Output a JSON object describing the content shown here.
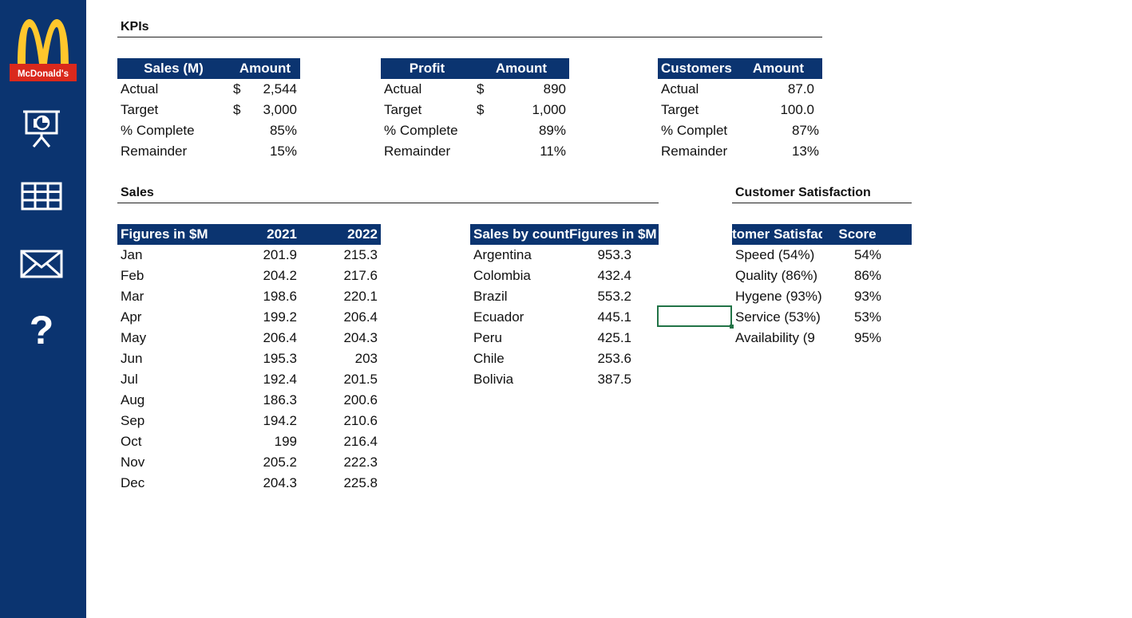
{
  "brand": {
    "logo_text": "McDonald's",
    "logo_arch_color": "#ffc72c",
    "logo_red": "#da291c"
  },
  "colors": {
    "sidebar": "#0b3470",
    "header": "#0b3470",
    "selection": "#217346"
  },
  "nav": [
    {
      "icon": "presentation-icon"
    },
    {
      "icon": "table-grid-icon"
    },
    {
      "icon": "mail-icon"
    },
    {
      "icon": "help-icon",
      "glyph": "?"
    }
  ],
  "sections": {
    "kpis": "KPIs",
    "sales": "Sales",
    "customer_satisfaction": "Customer Satisfaction"
  },
  "kpi_sales": {
    "headers": [
      "Sales (M)",
      "Amount"
    ],
    "rows": [
      {
        "label": "Actual",
        "cur": "$",
        "value": "2,544"
      },
      {
        "label": "Target",
        "cur": "$",
        "value": "3,000"
      },
      {
        "label": "% Complete",
        "cur": "",
        "value": "85%"
      },
      {
        "label": "Remainder",
        "cur": "",
        "value": "15%"
      }
    ]
  },
  "kpi_profit": {
    "headers": [
      "Profit",
      "Amount"
    ],
    "rows": [
      {
        "label": "Actual",
        "cur": "$",
        "value": "890"
      },
      {
        "label": "Target",
        "cur": "$",
        "value": "1,000"
      },
      {
        "label": "% Complete",
        "cur": "",
        "value": "89%"
      },
      {
        "label": "Remainder",
        "cur": "",
        "value": "11%"
      }
    ]
  },
  "kpi_customers": {
    "headers": [
      "Customers",
      "Amount"
    ],
    "rows": [
      {
        "label": "Actual",
        "value": "87.0"
      },
      {
        "label": "Target",
        "value": "100.0"
      },
      {
        "label": "% Complet",
        "value": "87%"
      },
      {
        "label": "Remainder",
        "value": "13%"
      }
    ]
  },
  "sales_monthly": {
    "headers": [
      "Figures in $M",
      "2021",
      "2022"
    ],
    "rows": [
      [
        "Jan",
        "201.9",
        "215.3"
      ],
      [
        "Feb",
        "204.2",
        "217.6"
      ],
      [
        "Mar",
        "198.6",
        "220.1"
      ],
      [
        "Apr",
        "199.2",
        "206.4"
      ],
      [
        "May",
        "206.4",
        "204.3"
      ],
      [
        "Jun",
        "195.3",
        "203"
      ],
      [
        "Jul",
        "192.4",
        "201.5"
      ],
      [
        "Aug",
        "186.3",
        "200.6"
      ],
      [
        "Sep",
        "194.2",
        "210.6"
      ],
      [
        "Oct",
        "199",
        "216.4"
      ],
      [
        "Nov",
        "205.2",
        "222.3"
      ],
      [
        "Dec",
        "204.3",
        "225.8"
      ]
    ]
  },
  "sales_country": {
    "headers": [
      "Sales by count",
      "Figures in $M"
    ],
    "rows": [
      [
        "Argentina",
        "953.3"
      ],
      [
        "Colombia",
        "432.4"
      ],
      [
        "Brazil",
        "553.2"
      ],
      [
        "Ecuador",
        "445.1"
      ],
      [
        "Peru",
        "425.1"
      ],
      [
        "Chile",
        "253.6"
      ],
      [
        "Bolivia",
        "387.5"
      ]
    ]
  },
  "satisfaction": {
    "headers": [
      "tomer Satisfac",
      "Score"
    ],
    "rows": [
      [
        "Speed (54%)",
        "54%"
      ],
      [
        "Quality (86%)",
        "86%"
      ],
      [
        "Hygene (93%)",
        "93%"
      ],
      [
        "Service (53%)",
        "53%"
      ],
      [
        "Availability (9",
        "95%"
      ]
    ]
  }
}
